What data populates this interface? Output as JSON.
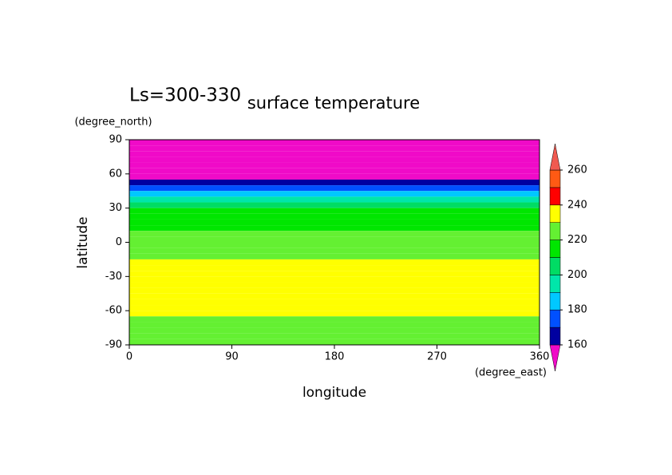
{
  "chart_data": {
    "type": "map",
    "title": "surface temperature",
    "label": "Ls=300-330",
    "xlabel": "longitude",
    "ylabel": "latitude",
    "xunit": "(degree_east)",
    "yunit": "(degree_north)",
    "xlim": [
      0,
      360
    ],
    "xticks": [
      0,
      90,
      180,
      270,
      360
    ],
    "ylim": [
      -90,
      90
    ],
    "yticks": [
      -90,
      -60,
      -30,
      0,
      30,
      60,
      90
    ],
    "field": {
      "lat_bins": [
        90,
        85,
        80,
        75,
        70,
        65,
        60,
        55,
        50,
        45,
        40,
        35,
        30,
        25,
        20,
        15,
        10,
        5,
        0,
        -5,
        -10,
        -15,
        -20,
        -25,
        -30,
        -35,
        -40,
        -45,
        -50,
        -55,
        -60,
        -65,
        -70,
        -75,
        -80,
        -85,
        -90
      ],
      "values": [
        150,
        150,
        150,
        150,
        150,
        150,
        150,
        165,
        175,
        185,
        195,
        205,
        215,
        215,
        215,
        215,
        222,
        222,
        225,
        225,
        228,
        235,
        235,
        235,
        235,
        235,
        235,
        235,
        235,
        235,
        235,
        228,
        225,
        225,
        225,
        225
      ]
    },
    "colorbar": {
      "ticks": [
        160,
        180,
        200,
        220,
        240,
        260
      ],
      "colors": [
        "#f00ac8",
        "#0000a0",
        "#0050ff",
        "#00c8ff",
        "#00e6aa",
        "#00dc64",
        "#00e600",
        "#64f032",
        "#ffff00",
        "#ff0000",
        "#ff5a14",
        "#f05a50"
      ]
    }
  }
}
